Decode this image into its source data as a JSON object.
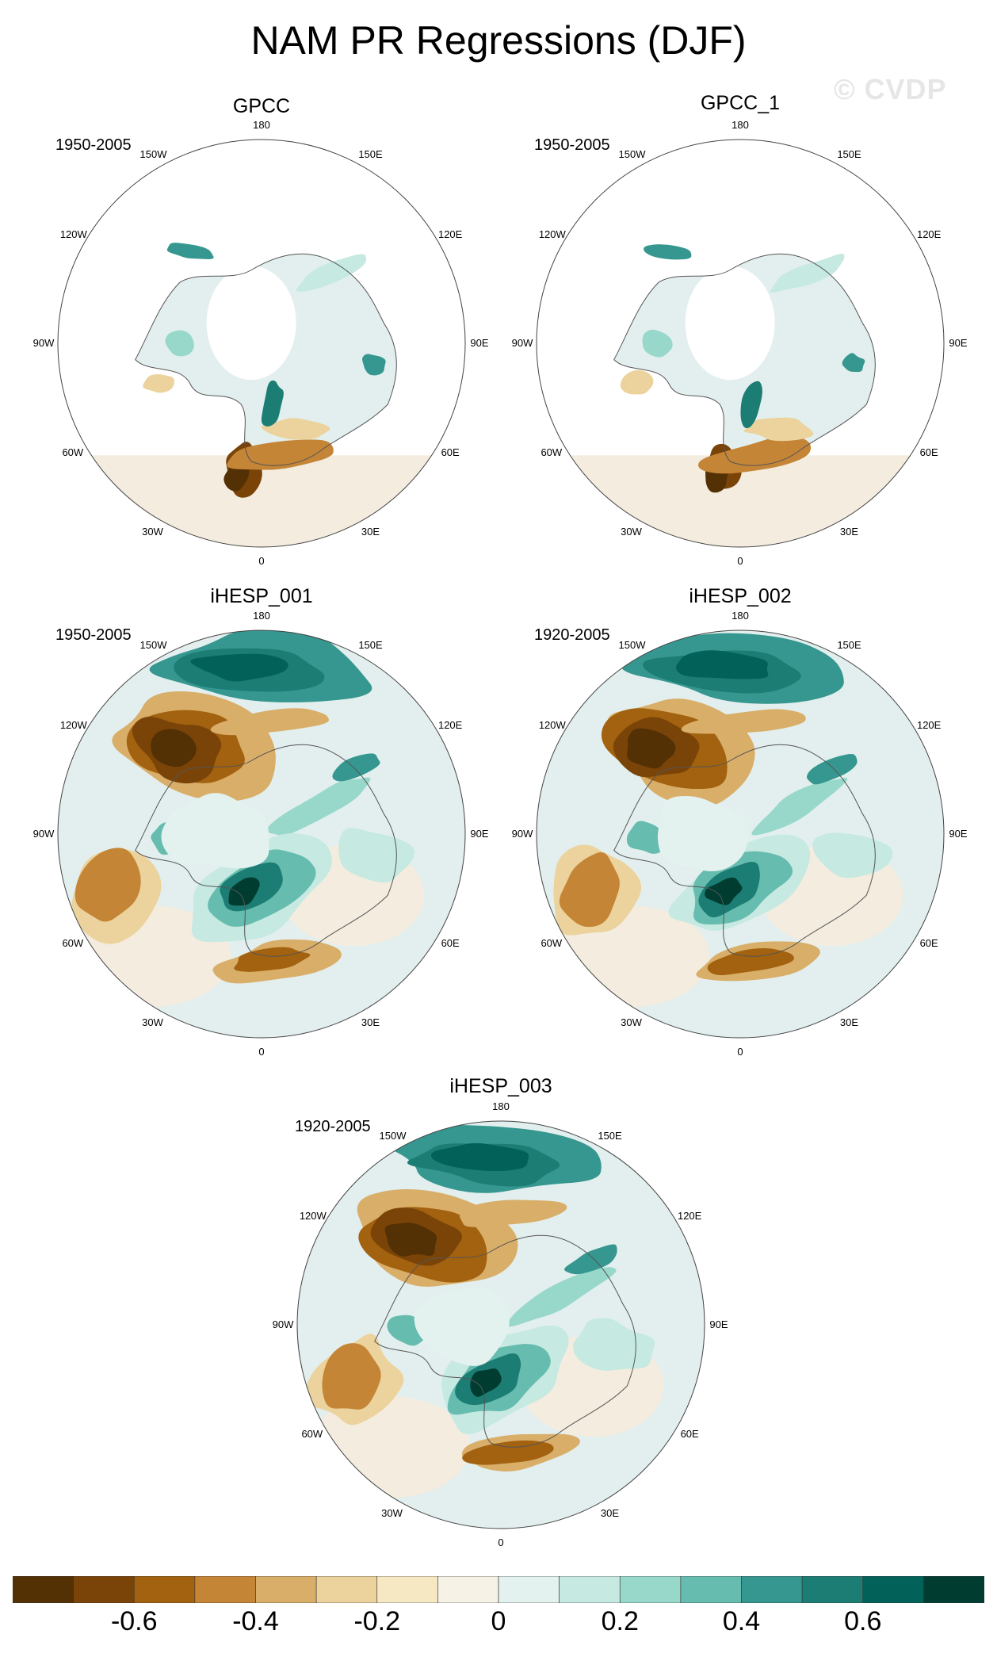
{
  "title": "NAM PR Regressions (DJF)",
  "watermark": "© CVDP",
  "lon_labels": [
    "180",
    "150E",
    "120E",
    "90E",
    "60E",
    "30E",
    "0",
    "30W",
    "60W",
    "90W",
    "120W",
    "150W"
  ],
  "panels": [
    {
      "name": "GPCC",
      "period": "1950-2005",
      "coverage": "land-only",
      "pattern": "obs"
    },
    {
      "name": "GPCC_1",
      "period": "1950-2005",
      "coverage": "land-only",
      "pattern": "obs"
    },
    {
      "name": "iHESP_001",
      "period": "1950-2005",
      "coverage": "global",
      "pattern": "model"
    },
    {
      "name": "iHESP_002",
      "period": "1920-2005",
      "coverage": "global",
      "pattern": "model"
    },
    {
      "name": "iHESP_003",
      "period": "1920-2005",
      "coverage": "global",
      "pattern": "model"
    }
  ],
  "colorbar": {
    "colors": [
      "#543005",
      "#7a4409",
      "#a2620f",
      "#c48536",
      "#d9ae69",
      "#ecd39d",
      "#f6e8c3",
      "#f7f2e6",
      "#e3f1ef",
      "#c6e9e2",
      "#98d8cb",
      "#66bcae",
      "#35978f",
      "#1b7d74",
      "#02625a",
      "#003c30"
    ],
    "tick_labels": [
      "-0.6",
      "-0.4",
      "-0.2",
      "0",
      "0.2",
      "0.4",
      "0.6"
    ]
  },
  "colors": {
    "neutral_warm": "#f3ecdf",
    "neutral_cool": "#e2efee",
    "land_outline": "#555555",
    "map_border": "#444444"
  }
}
